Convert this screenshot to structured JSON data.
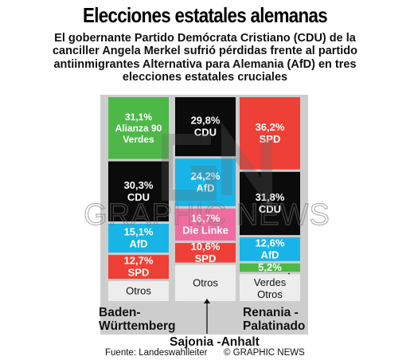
{
  "title": "Elecciones estatales alemanas",
  "subtitle": "El gobernante Partido Demócrata Cristiano (CDU) de la canciller Angela Merkel sufrió pérdidas frente al partido antiinmigrantes Alternativa para Alemania (AfD) en tres elecciones estatales cruciales",
  "source": "Fuente: Landeswahlleiter",
  "credit": "© GRAPHIC NEWS",
  "watermark_text": "GRAPHIC NEWS",
  "colors": {
    "green": "#4db848",
    "black": "#0b0b0b",
    "cyan": "#18b4e8",
    "red": "#ee4036",
    "pink": "#ee6aa1",
    "grey": "#cdcdcd",
    "lightgrey": "#ededed",
    "linke_pink": "#f06ba0"
  },
  "chart_data": {
    "type": "bar",
    "stacked": true,
    "unit": "%",
    "states": [
      {
        "name": "Baden-Württemberg",
        "label_lines": [
          "Baden-",
          "Württemberg"
        ],
        "segments": [
          {
            "party": "Alianza 90 Verdes",
            "label_lines": [
              "31,1%",
              "Alianza 90",
              "Verdes"
            ],
            "value": 31.1,
            "color": "#4db848"
          },
          {
            "party": "CDU",
            "label_lines": [
              "30,3%",
              "CDU"
            ],
            "value": 30.3,
            "color": "#0b0b0b"
          },
          {
            "party": "AfD",
            "label_lines": [
              "15,1%",
              "AfD"
            ],
            "value": 15.1,
            "color": "#18b4e8"
          },
          {
            "party": "SPD",
            "label_lines": [
              "12,7%",
              "SPD"
            ],
            "value": 12.7,
            "color": "#ee4036"
          },
          {
            "party": "Otros",
            "label_lines": [
              "Otros"
            ],
            "value": 10.8,
            "color": "#ededed"
          }
        ]
      },
      {
        "name": "Sajonia-Anhalt",
        "label_lines": [
          "Sajonia -Anhalt"
        ],
        "segments": [
          {
            "party": "CDU",
            "label_lines": [
              "29,8%",
              "CDU"
            ],
            "value": 29.8,
            "color": "#0b0b0b"
          },
          {
            "party": "AfD",
            "label_lines": [
              "24,2%",
              "AfD"
            ],
            "value": 24.2,
            "color": "#18b4e8"
          },
          {
            "party": "Die Linke",
            "label_lines": [
              "16,7%",
              "Die Linke"
            ],
            "value": 16.7,
            "color": "#f06ba0"
          },
          {
            "party": "SPD",
            "label_lines": [
              "10,6%",
              "SPD"
            ],
            "value": 10.6,
            "color": "#ee4036"
          },
          {
            "party": "Otros",
            "label_lines": [
              "Otros"
            ],
            "value": 18.7,
            "color": "#ededed"
          }
        ]
      },
      {
        "name": "Renania-Palatinado",
        "label_lines": [
          "Renania -",
          "Palatinado"
        ],
        "segments": [
          {
            "party": "SPD",
            "label_lines": [
              "36,2%",
              "SPD"
            ],
            "value": 36.2,
            "color": "#ee4036"
          },
          {
            "party": "CDU",
            "label_lines": [
              "31,8%",
              "CDU"
            ],
            "value": 31.8,
            "color": "#0b0b0b"
          },
          {
            "party": "AfD",
            "label_lines": [
              "12,6%",
              "AfD"
            ],
            "value": 12.6,
            "color": "#18b4e8"
          },
          {
            "party": "Verdes",
            "label_lines": [
              "5,2%"
            ],
            "value": 5.2,
            "color": "#4db848"
          },
          {
            "party": "Otros",
            "label_lines": [
              "Verdes",
              "Otros"
            ],
            "value": 14.2,
            "color": "#ededed"
          }
        ]
      }
    ]
  }
}
